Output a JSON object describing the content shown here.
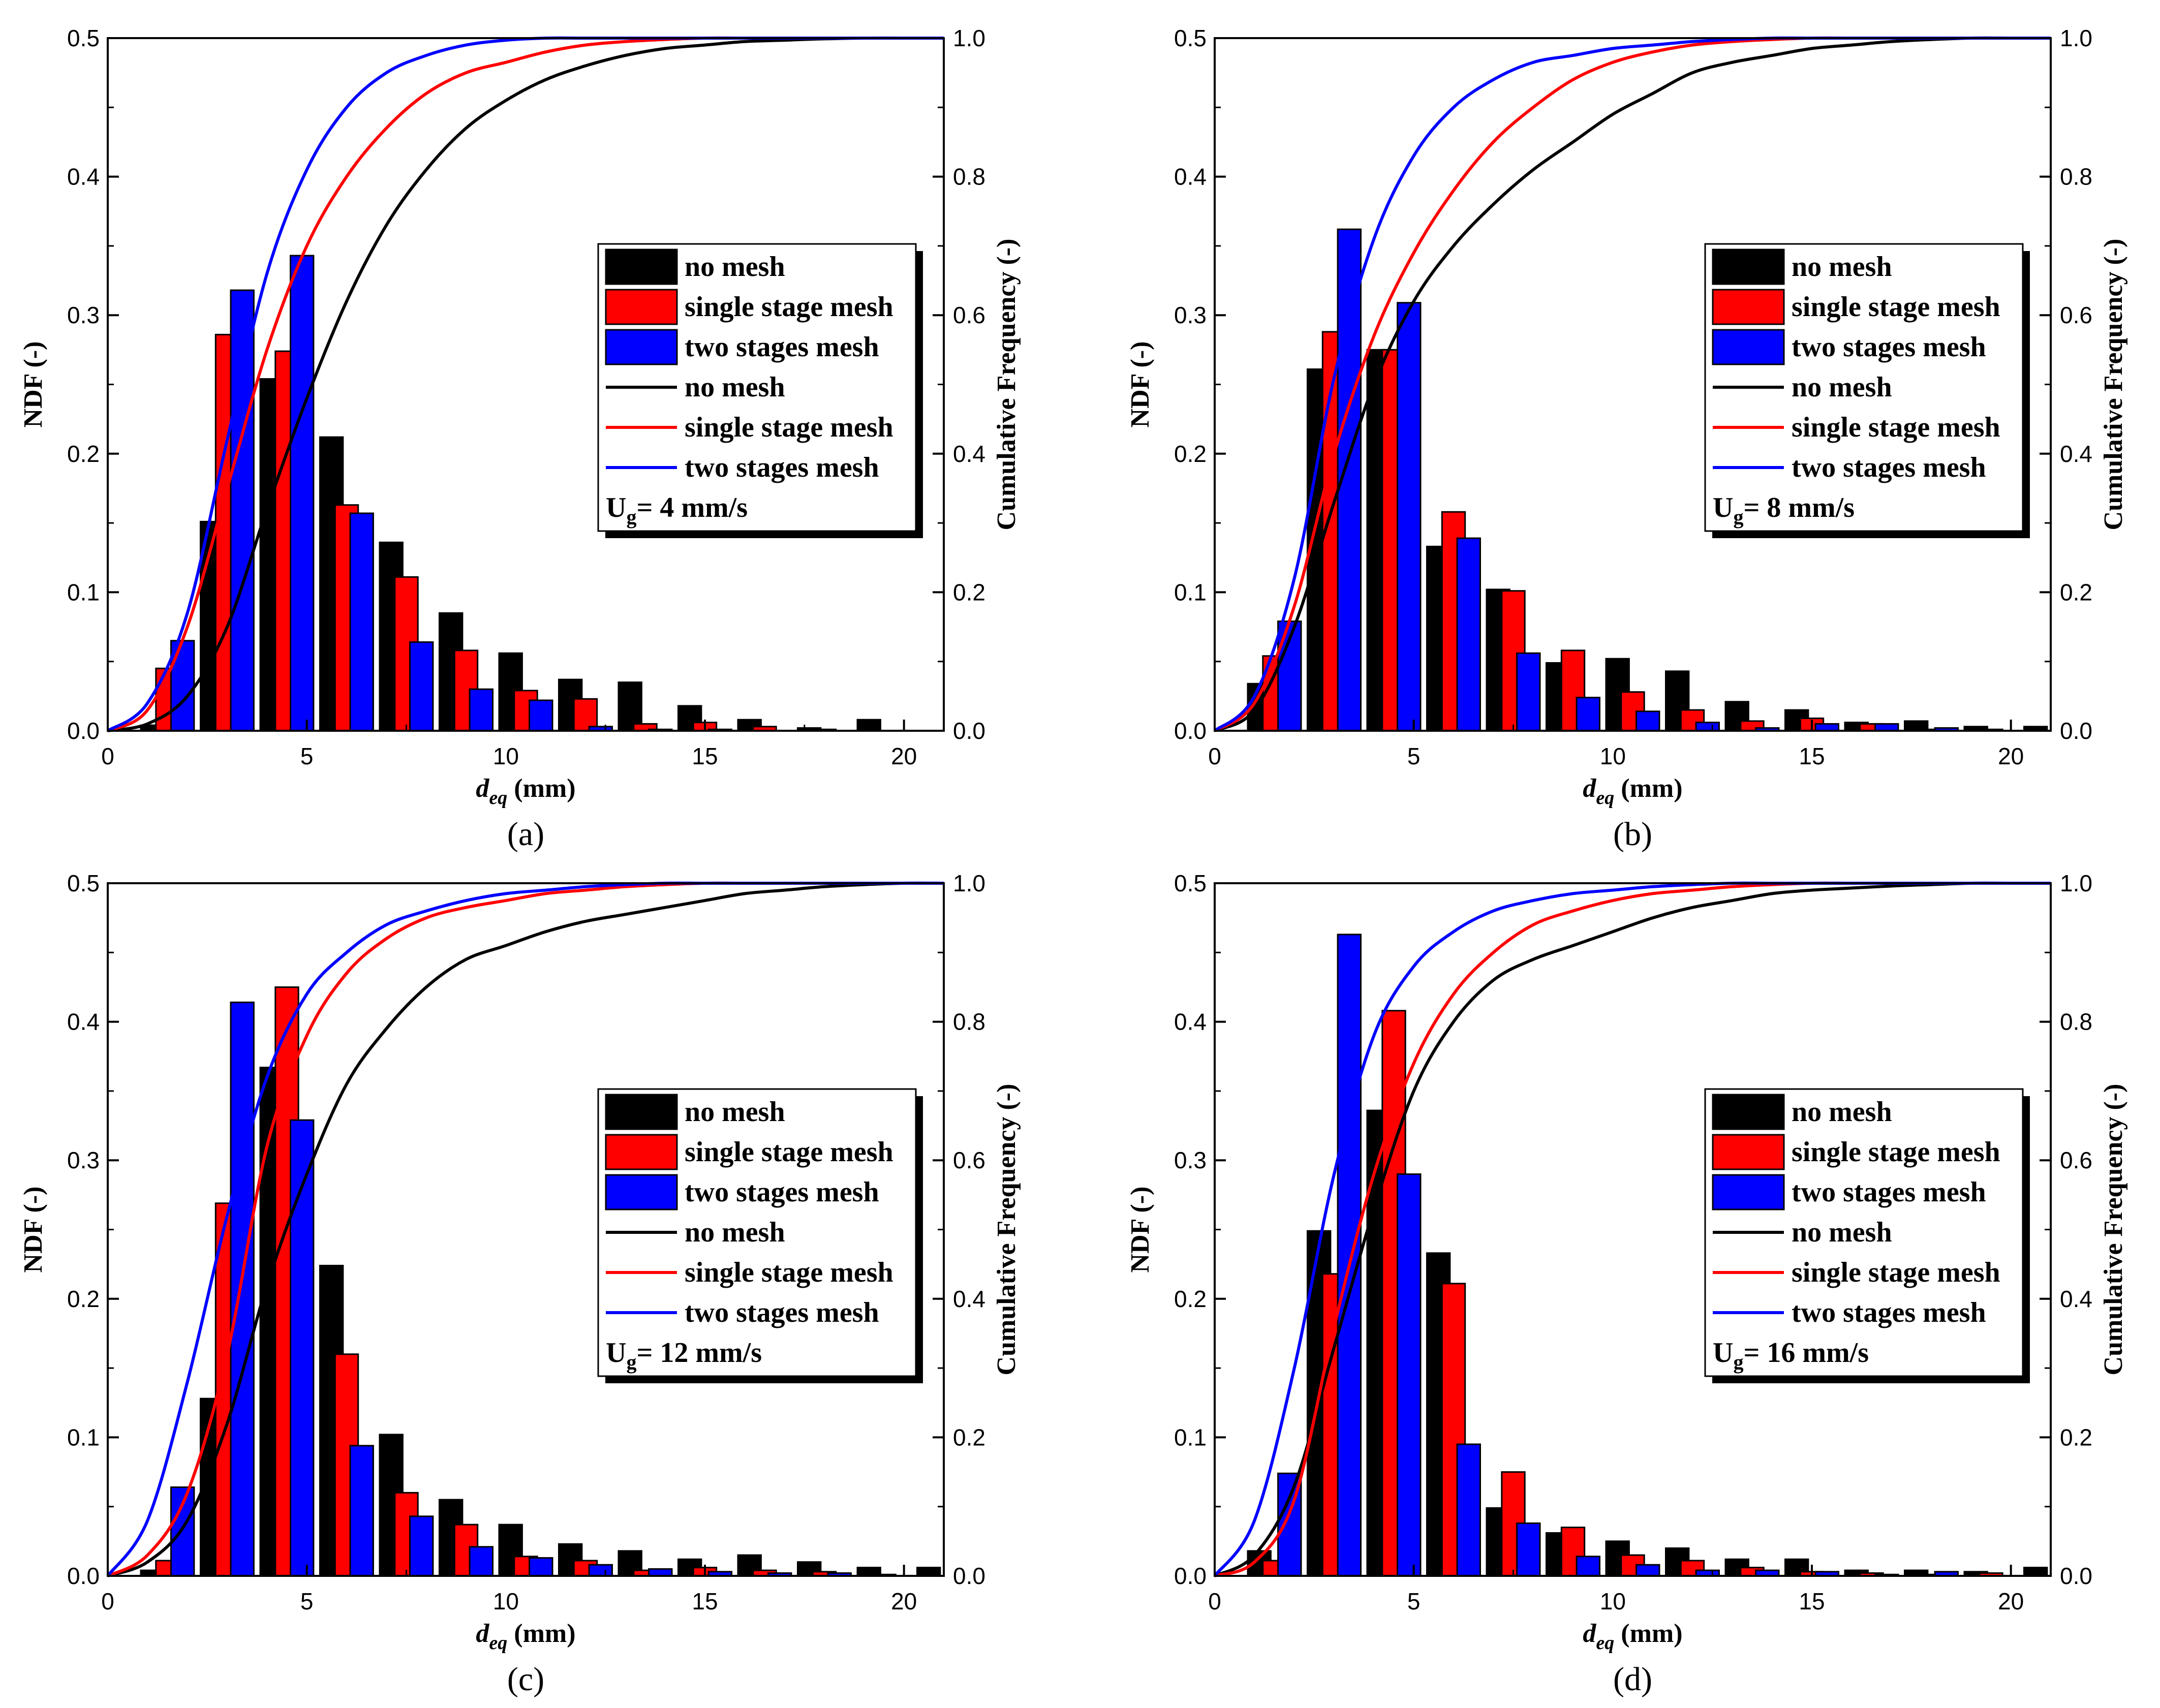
{
  "figure": {
    "x_axis_title_main": "d",
    "x_axis_title_sub": "eq",
    "x_axis_title_unit": " (mm)",
    "y_axis_left_title": "NDF (-)",
    "y_axis_right_title": "Cumulative Frequency (-)",
    "x_ticks": [
      0,
      5,
      10,
      15,
      20
    ],
    "y_left_ticks": [
      "0.0",
      "0.1",
      "0.2",
      "0.3",
      "0.4",
      "0.5"
    ],
    "y_right_ticks": [
      "0.0",
      "0.2",
      "0.4",
      "0.6",
      "0.8",
      "1.0"
    ],
    "legend_bar_labels": [
      "no mesh",
      "single stage mesh",
      "two stages mesh"
    ],
    "legend_line_labels": [
      "no mesh",
      "single stage mesh",
      "two stages mesh"
    ],
    "ug_prefix": "U",
    "ug_sub": "g",
    "colors": {
      "no_mesh": "#000000",
      "single_stage": "#ff0000",
      "two_stages": "#0000ff"
    }
  },
  "chart_data": [
    {
      "type": "bar",
      "panel_label": "(a)",
      "ug_label": "= 4 mm/s",
      "xlim": [
        0,
        21
      ],
      "ylim_left": [
        0,
        0.5
      ],
      "ylim_right": [
        0,
        1.0
      ],
      "bar_series": [
        {
          "name": "no mesh",
          "x": [
            1.12,
            2.62,
            4.12,
            5.62,
            7.12,
            8.62,
            10.12,
            11.62,
            13.12,
            14.62,
            16.12,
            17.62,
            19.12
          ],
          "values": [
            0.004,
            0.151,
            0.254,
            0.212,
            0.136,
            0.085,
            0.056,
            0.037,
            0.035,
            0.018,
            0.008,
            0.002,
            0.008
          ]
        },
        {
          "name": "single stage mesh",
          "x": [
            1.5,
            3.0,
            4.5,
            6.0,
            7.5,
            9.0,
            10.5,
            12.0,
            13.5,
            15.0,
            16.5,
            18.0
          ],
          "values": [
            0.045,
            0.286,
            0.274,
            0.163,
            0.111,
            0.058,
            0.029,
            0.023,
            0.005,
            0.006,
            0.003,
            0.001
          ]
        },
        {
          "name": "two stages mesh",
          "x": [
            1.88,
            3.38,
            4.88,
            6.38,
            7.88,
            9.38,
            10.88,
            12.38,
            13.88,
            15.38
          ],
          "values": [
            0.065,
            0.318,
            0.343,
            0.157,
            0.064,
            0.03,
            0.022,
            0.003,
            0.001,
            0.001
          ]
        }
      ],
      "cumulative_series": [
        {
          "name": "no mesh",
          "x": [
            0,
            1,
            2,
            3,
            4,
            5,
            6,
            7,
            8,
            9,
            10,
            11,
            12,
            13,
            14,
            15,
            16,
            17,
            18,
            19,
            20,
            21
          ],
          "values": [
            0,
            0.01,
            0.05,
            0.15,
            0.32,
            0.48,
            0.62,
            0.73,
            0.81,
            0.87,
            0.91,
            0.94,
            0.96,
            0.975,
            0.985,
            0.99,
            0.995,
            0.997,
            0.999,
            1.0,
            1.0,
            1.0
          ]
        },
        {
          "name": "single stage mesh",
          "x": [
            0,
            1,
            2,
            3,
            4,
            5,
            6,
            7,
            8,
            9,
            10,
            11,
            12,
            13,
            14,
            15,
            16,
            17,
            18,
            19,
            20,
            21
          ],
          "values": [
            0,
            0.03,
            0.15,
            0.35,
            0.55,
            0.7,
            0.8,
            0.87,
            0.92,
            0.95,
            0.965,
            0.98,
            0.99,
            0.995,
            0.998,
            1.0,
            1.0,
            1.0,
            1.0,
            1.0,
            1.0,
            1.0
          ]
        },
        {
          "name": "two stages mesh",
          "x": [
            0,
            1,
            2,
            3,
            4,
            5,
            6,
            7,
            8,
            9,
            10,
            11,
            12,
            13,
            14,
            15,
            16,
            17,
            18,
            19,
            20,
            21
          ],
          "values": [
            0,
            0.04,
            0.17,
            0.42,
            0.66,
            0.81,
            0.9,
            0.95,
            0.975,
            0.99,
            0.997,
            1.0,
            1.0,
            1.0,
            1.0,
            1.0,
            1.0,
            1.0,
            1.0,
            1.0,
            1.0,
            1.0
          ]
        }
      ]
    },
    {
      "type": "bar",
      "panel_label": "(b)",
      "ug_label": "= 8 mm/s",
      "xlim": [
        0,
        21
      ],
      "ylim_left": [
        0,
        0.5
      ],
      "ylim_right": [
        0,
        1.0
      ],
      "bar_series": [
        {
          "name": "no mesh",
          "x": [
            1.12,
            2.62,
            4.12,
            5.62,
            7.12,
            8.62,
            10.12,
            11.62,
            13.12,
            14.62,
            16.12,
            17.62,
            19.12,
            20.62
          ],
          "values": [
            0.034,
            0.261,
            0.275,
            0.133,
            0.102,
            0.049,
            0.052,
            0.043,
            0.021,
            0.015,
            0.006,
            0.007,
            0.003,
            0.003
          ]
        },
        {
          "name": "single stage mesh",
          "x": [
            1.5,
            3.0,
            4.5,
            6.0,
            7.5,
            9.0,
            10.5,
            12.0,
            13.5,
            15.0,
            16.5,
            18.0,
            19.5
          ],
          "values": [
            0.054,
            0.288,
            0.275,
            0.158,
            0.101,
            0.058,
            0.028,
            0.015,
            0.007,
            0.009,
            0.005,
            0.001,
            0.001
          ]
        },
        {
          "name": "two stages mesh",
          "x": [
            1.88,
            3.38,
            4.88,
            6.38,
            7.88,
            9.38,
            10.88,
            12.38,
            13.88,
            15.38,
            16.88,
            18.38
          ],
          "values": [
            0.079,
            0.362,
            0.309,
            0.139,
            0.056,
            0.024,
            0.014,
            0.006,
            0.002,
            0.005,
            0.005,
            0.002
          ]
        }
      ],
      "cumulative_series": [
        {
          "name": "no mesh",
          "x": [
            0,
            1,
            2,
            3,
            4,
            5,
            6,
            7,
            8,
            9,
            10,
            11,
            12,
            13,
            14,
            15,
            16,
            17,
            18,
            19,
            20,
            21
          ],
          "values": [
            0,
            0.03,
            0.15,
            0.33,
            0.5,
            0.62,
            0.7,
            0.76,
            0.81,
            0.85,
            0.89,
            0.92,
            0.95,
            0.965,
            0.975,
            0.985,
            0.99,
            0.995,
            0.998,
            1.0,
            1.0,
            1.0
          ]
        },
        {
          "name": "single stage mesh",
          "x": [
            0,
            1,
            2,
            3,
            4,
            5,
            6,
            7,
            8,
            9,
            10,
            11,
            12,
            13,
            14,
            15,
            16,
            17,
            18,
            19,
            20,
            21
          ],
          "values": [
            0,
            0.04,
            0.18,
            0.4,
            0.57,
            0.69,
            0.78,
            0.85,
            0.9,
            0.94,
            0.965,
            0.98,
            0.99,
            0.995,
            0.998,
            1.0,
            1.0,
            1.0,
            1.0,
            1.0,
            1.0,
            1.0
          ]
        },
        {
          "name": "two stages mesh",
          "x": [
            0,
            1,
            2,
            3,
            4,
            5,
            6,
            7,
            8,
            9,
            10,
            11,
            12,
            13,
            14,
            15,
            16,
            17,
            18,
            19,
            20,
            21
          ],
          "values": [
            0,
            0.05,
            0.22,
            0.51,
            0.71,
            0.83,
            0.9,
            0.94,
            0.965,
            0.975,
            0.985,
            0.99,
            0.995,
            0.998,
            1.0,
            1.0,
            1.0,
            1.0,
            1.0,
            1.0,
            1.0,
            1.0
          ]
        }
      ]
    },
    {
      "type": "bar",
      "panel_label": "(c)",
      "ug_label": "= 12 mm/s",
      "xlim": [
        0,
        21
      ],
      "ylim_left": [
        0,
        0.5
      ],
      "ylim_right": [
        0,
        1.0
      ],
      "bar_series": [
        {
          "name": "no mesh",
          "x": [
            1.12,
            2.62,
            4.12,
            5.62,
            7.12,
            8.62,
            10.12,
            11.62,
            13.12,
            14.62,
            16.12,
            17.62,
            19.12,
            20.62
          ],
          "values": [
            0.004,
            0.128,
            0.367,
            0.224,
            0.102,
            0.055,
            0.037,
            0.023,
            0.018,
            0.012,
            0.015,
            0.01,
            0.006,
            0.006
          ]
        },
        {
          "name": "single stage mesh",
          "x": [
            1.5,
            3.0,
            4.5,
            6.0,
            7.5,
            9.0,
            10.5,
            12.0,
            13.5,
            15.0,
            16.5,
            18.0,
            19.5
          ],
          "values": [
            0.011,
            0.269,
            0.425,
            0.16,
            0.06,
            0.037,
            0.014,
            0.011,
            0.004,
            0.006,
            0.004,
            0.003,
            0.001
          ]
        },
        {
          "name": "two stages mesh",
          "x": [
            1.88,
            3.38,
            4.88,
            6.38,
            7.88,
            9.38,
            10.88,
            12.38,
            13.88,
            15.38,
            16.88,
            18.38
          ],
          "values": [
            0.064,
            0.414,
            0.329,
            0.094,
            0.043,
            0.021,
            0.013,
            0.008,
            0.005,
            0.003,
            0.002,
            0.002
          ]
        }
      ],
      "cumulative_series": [
        {
          "name": "no mesh",
          "x": [
            0,
            1,
            2,
            3,
            4,
            5,
            6,
            7,
            8,
            9,
            10,
            11,
            12,
            13,
            14,
            15,
            16,
            17,
            18,
            19,
            20,
            21
          ],
          "values": [
            0,
            0.02,
            0.08,
            0.22,
            0.42,
            0.58,
            0.71,
            0.79,
            0.85,
            0.89,
            0.91,
            0.93,
            0.945,
            0.955,
            0.965,
            0.975,
            0.985,
            0.99,
            0.995,
            0.998,
            1.0,
            1.0
          ]
        },
        {
          "name": "single stage mesh",
          "x": [
            0,
            1,
            2,
            3,
            4,
            5,
            6,
            7,
            8,
            9,
            10,
            11,
            12,
            13,
            14,
            15,
            16,
            17,
            18,
            19,
            20,
            21
          ],
          "values": [
            0,
            0.03,
            0.12,
            0.32,
            0.62,
            0.78,
            0.87,
            0.92,
            0.95,
            0.965,
            0.975,
            0.985,
            0.99,
            0.995,
            0.998,
            1.0,
            1.0,
            1.0,
            1.0,
            1.0,
            1.0,
            1.0
          ]
        },
        {
          "name": "two stages mesh",
          "x": [
            0,
            1,
            2,
            3,
            4,
            5,
            6,
            7,
            8,
            9,
            10,
            11,
            12,
            13,
            14,
            15,
            16,
            17,
            18,
            19,
            20,
            21
          ],
          "values": [
            0,
            0.08,
            0.28,
            0.52,
            0.72,
            0.84,
            0.9,
            0.94,
            0.96,
            0.975,
            0.985,
            0.99,
            0.995,
            0.998,
            1.0,
            1.0,
            1.0,
            1.0,
            1.0,
            1.0,
            1.0,
            1.0
          ]
        }
      ]
    },
    {
      "type": "bar",
      "panel_label": "(d)",
      "ug_label": "= 16 mm/s",
      "xlim": [
        0,
        21
      ],
      "ylim_left": [
        0,
        0.5
      ],
      "ylim_right": [
        0,
        1.0
      ],
      "bar_series": [
        {
          "name": "no mesh",
          "x": [
            1.12,
            2.62,
            4.12,
            5.62,
            7.12,
            8.62,
            10.12,
            11.62,
            13.12,
            14.62,
            16.12,
            17.62,
            19.12,
            20.62
          ],
          "values": [
            0.018,
            0.249,
            0.336,
            0.233,
            0.049,
            0.031,
            0.025,
            0.02,
            0.012,
            0.012,
            0.004,
            0.004,
            0.003,
            0.006
          ]
        },
        {
          "name": "single stage mesh",
          "x": [
            1.5,
            3.0,
            4.5,
            6.0,
            7.5,
            9.0,
            10.5,
            12.0,
            13.5,
            15.0,
            16.5,
            18.0,
            19.5
          ],
          "values": [
            0.011,
            0.218,
            0.408,
            0.211,
            0.075,
            0.035,
            0.015,
            0.011,
            0.006,
            0.003,
            0.002,
            0.001,
            0.002
          ]
        },
        {
          "name": "two stages mesh",
          "x": [
            1.88,
            3.38,
            4.88,
            6.38,
            7.88,
            9.38,
            10.88,
            12.38,
            13.88,
            15.38,
            16.88,
            18.38
          ],
          "values": [
            0.074,
            0.463,
            0.29,
            0.095,
            0.038,
            0.014,
            0.008,
            0.004,
            0.004,
            0.003,
            0.001,
            0.003
          ]
        }
      ],
      "cumulative_series": [
        {
          "name": "no mesh",
          "x": [
            0,
            1,
            2,
            3,
            4,
            5,
            6,
            7,
            8,
            9,
            10,
            11,
            12,
            13,
            14,
            15,
            16,
            17,
            18,
            19,
            20,
            21
          ],
          "values": [
            0,
            0.03,
            0.13,
            0.33,
            0.53,
            0.7,
            0.8,
            0.86,
            0.89,
            0.91,
            0.93,
            0.95,
            0.965,
            0.975,
            0.985,
            0.99,
            0.993,
            0.996,
            0.998,
            1.0,
            1.0,
            1.0
          ]
        },
        {
          "name": "single stage mesh",
          "x": [
            0,
            1,
            2,
            3,
            4,
            5,
            6,
            7,
            8,
            9,
            10,
            11,
            12,
            13,
            14,
            15,
            16,
            17,
            18,
            19,
            20,
            21
          ],
          "values": [
            0,
            0.02,
            0.11,
            0.36,
            0.58,
            0.74,
            0.84,
            0.9,
            0.94,
            0.96,
            0.975,
            0.985,
            0.99,
            0.995,
            0.998,
            1.0,
            1.0,
            1.0,
            1.0,
            1.0,
            1.0,
            1.0
          ]
        },
        {
          "name": "two stages mesh",
          "x": [
            0,
            1,
            2,
            3,
            4,
            5,
            6,
            7,
            8,
            9,
            10,
            11,
            12,
            13,
            14,
            15,
            16,
            17,
            18,
            19,
            20,
            21
          ],
          "values": [
            0,
            0.08,
            0.3,
            0.58,
            0.78,
            0.88,
            0.93,
            0.96,
            0.975,
            0.985,
            0.99,
            0.995,
            0.998,
            1.0,
            1.0,
            1.0,
            1.0,
            1.0,
            1.0,
            1.0,
            1.0,
            1.0
          ]
        }
      ]
    }
  ]
}
